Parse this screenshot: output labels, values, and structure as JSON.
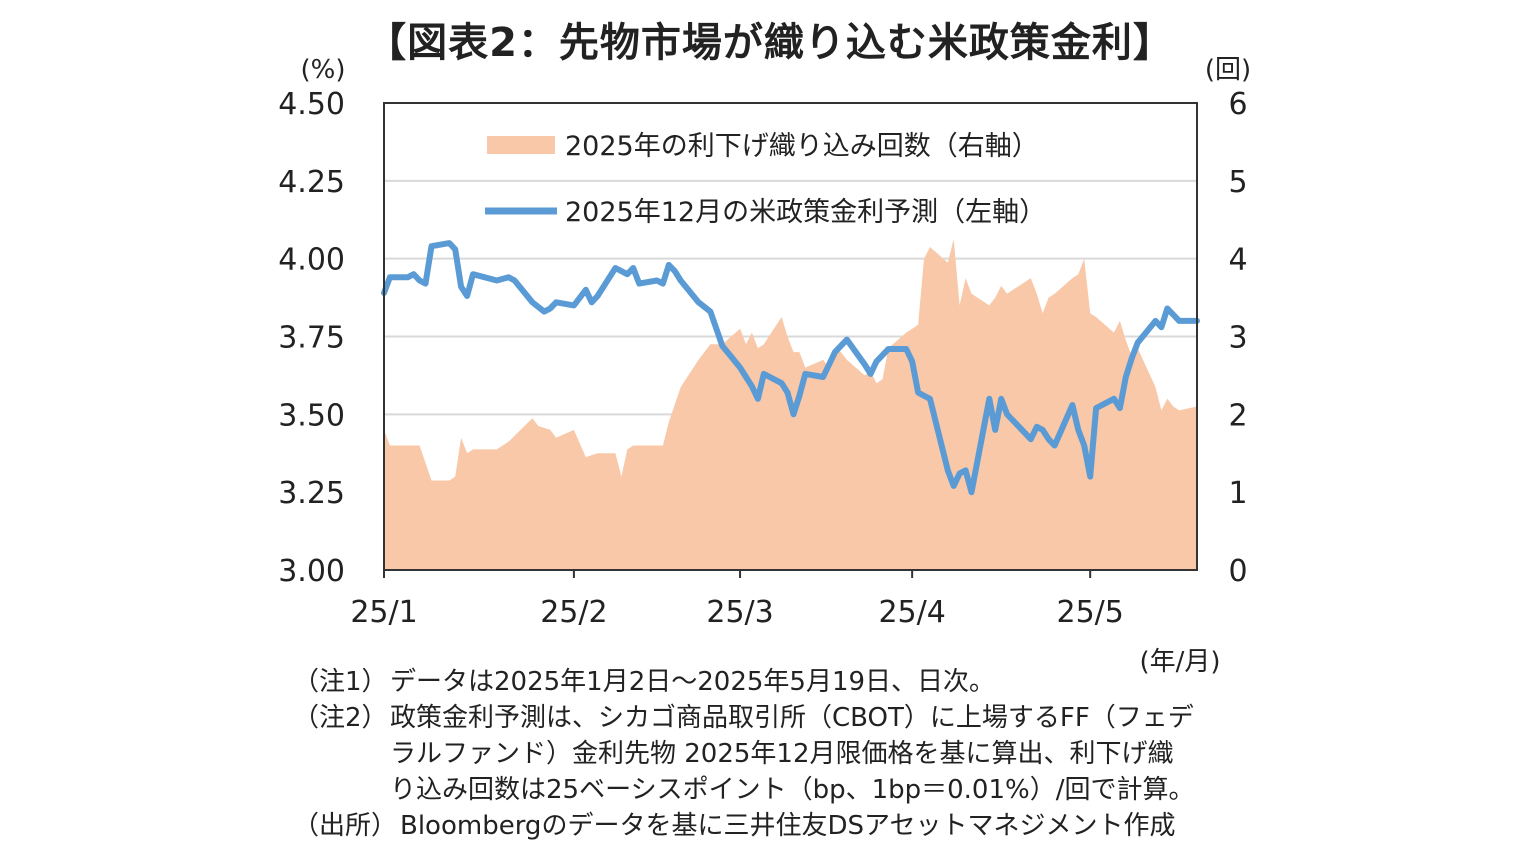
{
  "title": "【図表2：先物市場が織り込む米政策金利】",
  "chart_data": {
    "type": "area+line",
    "left_axis": {
      "unit_label": "(%)",
      "ylim": [
        3.0,
        4.5
      ],
      "ticks": [
        "3.00",
        "3.25",
        "3.50",
        "3.75",
        "4.00",
        "4.25",
        "4.50"
      ]
    },
    "right_axis": {
      "unit_label": "(回)",
      "ylim": [
        0,
        6
      ],
      "ticks": [
        "0",
        "1",
        "2",
        "3",
        "4",
        "5",
        "6"
      ]
    },
    "x_axis": {
      "unit_label": "(年/月)",
      "ticks": [
        {
          "label": "25/1",
          "date": "2025-01-02"
        },
        {
          "label": "25/2",
          "date": "2025-02-03"
        },
        {
          "label": "25/3",
          "date": "2025-03-03"
        },
        {
          "label": "25/4",
          "date": "2025-04-01"
        },
        {
          "label": "25/5",
          "date": "2025-05-01"
        }
      ],
      "range": [
        "2025-01-02",
        "2025-05-19"
      ]
    },
    "grid": "horizontal",
    "legend_position": "top-center",
    "series": [
      {
        "name": "2025年の利下げ織り込み回数（右軸）",
        "type": "area",
        "axis": "right",
        "color": "#f8c8a8",
        "points": [
          [
            "2025-01-02",
            1.8
          ],
          [
            "2025-01-03",
            1.6
          ],
          [
            "2025-01-06",
            1.6
          ],
          [
            "2025-01-08",
            1.6
          ],
          [
            "2025-01-10",
            1.15
          ],
          [
            "2025-01-13",
            1.15
          ],
          [
            "2025-01-14",
            1.2
          ],
          [
            "2025-01-15",
            1.7
          ],
          [
            "2025-01-16",
            1.5
          ],
          [
            "2025-01-17",
            1.55
          ],
          [
            "2025-01-21",
            1.55
          ],
          [
            "2025-01-23",
            1.65
          ],
          [
            "2025-01-27",
            1.95
          ],
          [
            "2025-01-28",
            1.85
          ],
          [
            "2025-01-30",
            1.8
          ],
          [
            "2025-01-31",
            1.7
          ],
          [
            "2025-02-03",
            1.8
          ],
          [
            "2025-02-05",
            1.45
          ],
          [
            "2025-02-07",
            1.5
          ],
          [
            "2025-02-10",
            1.5
          ],
          [
            "2025-02-11",
            1.2
          ],
          [
            "2025-02-12",
            1.55
          ],
          [
            "2025-02-13",
            1.6
          ],
          [
            "2025-02-14",
            1.6
          ],
          [
            "2025-02-18",
            1.6
          ],
          [
            "2025-02-19",
            1.9
          ],
          [
            "2025-02-21",
            2.35
          ],
          [
            "2025-02-24",
            2.7
          ],
          [
            "2025-02-26",
            2.9
          ],
          [
            "2025-02-28",
            2.9
          ],
          [
            "2025-03-03",
            3.1
          ],
          [
            "2025-03-04",
            2.9
          ],
          [
            "2025-03-05",
            3.05
          ],
          [
            "2025-03-06",
            2.85
          ],
          [
            "2025-03-07",
            2.9
          ],
          [
            "2025-03-10",
            3.25
          ],
          [
            "2025-03-11",
            3.0
          ],
          [
            "2025-03-12",
            2.8
          ],
          [
            "2025-03-13",
            2.8
          ],
          [
            "2025-03-14",
            2.6
          ],
          [
            "2025-03-17",
            2.7
          ],
          [
            "2025-03-18",
            2.6
          ],
          [
            "2025-03-19",
            2.85
          ],
          [
            "2025-03-20",
            2.8
          ],
          [
            "2025-03-21",
            2.7
          ],
          [
            "2025-03-24",
            2.5
          ],
          [
            "2025-03-25",
            2.55
          ],
          [
            "2025-03-26",
            2.4
          ],
          [
            "2025-03-27",
            2.45
          ],
          [
            "2025-03-28",
            2.85
          ],
          [
            "2025-03-31",
            3.05
          ],
          [
            "2025-04-01",
            3.1
          ],
          [
            "2025-04-02",
            3.15
          ],
          [
            "2025-04-03",
            4.0
          ],
          [
            "2025-04-04",
            4.15
          ],
          [
            "2025-04-07",
            3.95
          ],
          [
            "2025-04-08",
            4.25
          ],
          [
            "2025-04-09",
            3.4
          ],
          [
            "2025-04-10",
            3.75
          ],
          [
            "2025-04-11",
            3.55
          ],
          [
            "2025-04-14",
            3.4
          ],
          [
            "2025-04-15",
            3.5
          ],
          [
            "2025-04-16",
            3.65
          ],
          [
            "2025-04-17",
            3.55
          ],
          [
            "2025-04-21",
            3.75
          ],
          [
            "2025-04-22",
            3.55
          ],
          [
            "2025-04-23",
            3.3
          ],
          [
            "2025-04-24",
            3.5
          ],
          [
            "2025-04-25",
            3.55
          ],
          [
            "2025-04-28",
            3.75
          ],
          [
            "2025-04-29",
            3.8
          ],
          [
            "2025-04-30",
            4.0
          ],
          [
            "2025-05-01",
            3.3
          ],
          [
            "2025-05-02",
            3.25
          ],
          [
            "2025-05-05",
            3.05
          ],
          [
            "2025-05-06",
            3.2
          ],
          [
            "2025-05-07",
            2.95
          ],
          [
            "2025-05-08",
            2.75
          ],
          [
            "2025-05-09",
            2.85
          ],
          [
            "2025-05-12",
            2.35
          ],
          [
            "2025-05-13",
            2.05
          ],
          [
            "2025-05-14",
            2.2
          ],
          [
            "2025-05-15",
            2.1
          ],
          [
            "2025-05-16",
            2.05
          ],
          [
            "2025-05-19",
            2.1
          ]
        ]
      },
      {
        "name": "2025年12月の米政策金利予測（左軸）",
        "type": "line",
        "axis": "left",
        "color": "#5b9bd5",
        "points": [
          [
            "2025-01-02",
            3.89
          ],
          [
            "2025-01-03",
            3.94
          ],
          [
            "2025-01-06",
            3.94
          ],
          [
            "2025-01-07",
            3.95
          ],
          [
            "2025-01-08",
            3.93
          ],
          [
            "2025-01-09",
            3.92
          ],
          [
            "2025-01-10",
            4.04
          ],
          [
            "2025-01-13",
            4.05
          ],
          [
            "2025-01-14",
            4.03
          ],
          [
            "2025-01-15",
            3.91
          ],
          [
            "2025-01-16",
            3.88
          ],
          [
            "2025-01-17",
            3.95
          ],
          [
            "2025-01-21",
            3.93
          ],
          [
            "2025-01-23",
            3.94
          ],
          [
            "2025-01-24",
            3.93
          ],
          [
            "2025-01-27",
            3.86
          ],
          [
            "2025-01-29",
            3.83
          ],
          [
            "2025-01-30",
            3.84
          ],
          [
            "2025-01-31",
            3.86
          ],
          [
            "2025-02-03",
            3.85
          ],
          [
            "2025-02-05",
            3.9
          ],
          [
            "2025-02-06",
            3.86
          ],
          [
            "2025-02-07",
            3.88
          ],
          [
            "2025-02-10",
            3.97
          ],
          [
            "2025-02-12",
            3.95
          ],
          [
            "2025-02-13",
            3.97
          ],
          [
            "2025-02-14",
            3.92
          ],
          [
            "2025-02-17",
            3.93
          ],
          [
            "2025-02-18",
            3.92
          ],
          [
            "2025-02-19",
            3.98
          ],
          [
            "2025-02-20",
            3.96
          ],
          [
            "2025-02-21",
            3.93
          ],
          [
            "2025-02-24",
            3.86
          ],
          [
            "2025-02-26",
            3.83
          ],
          [
            "2025-02-28",
            3.72
          ],
          [
            "2025-03-03",
            3.65
          ],
          [
            "2025-03-04",
            3.62
          ],
          [
            "2025-03-05",
            3.59
          ],
          [
            "2025-03-06",
            3.55
          ],
          [
            "2025-03-07",
            3.63
          ],
          [
            "2025-03-10",
            3.6
          ],
          [
            "2025-03-11",
            3.57
          ],
          [
            "2025-03-12",
            3.5
          ],
          [
            "2025-03-13",
            3.56
          ],
          [
            "2025-03-14",
            3.63
          ],
          [
            "2025-03-17",
            3.62
          ],
          [
            "2025-03-18",
            3.66
          ],
          [
            "2025-03-19",
            3.7
          ],
          [
            "2025-03-20",
            3.72
          ],
          [
            "2025-03-21",
            3.74
          ],
          [
            "2025-03-24",
            3.66
          ],
          [
            "2025-03-25",
            3.63
          ],
          [
            "2025-03-26",
            3.67
          ],
          [
            "2025-03-27",
            3.69
          ],
          [
            "2025-03-28",
            3.71
          ],
          [
            "2025-03-31",
            3.71
          ],
          [
            "2025-04-01",
            3.67
          ],
          [
            "2025-04-02",
            3.57
          ],
          [
            "2025-04-03",
            3.56
          ],
          [
            "2025-04-04",
            3.55
          ],
          [
            "2025-04-07",
            3.32
          ],
          [
            "2025-04-08",
            3.27
          ],
          [
            "2025-04-09",
            3.31
          ],
          [
            "2025-04-10",
            3.32
          ],
          [
            "2025-04-11",
            3.25
          ],
          [
            "2025-04-14",
            3.55
          ],
          [
            "2025-04-15",
            3.45
          ],
          [
            "2025-04-16",
            3.55
          ],
          [
            "2025-04-17",
            3.5
          ],
          [
            "2025-04-21",
            3.42
          ],
          [
            "2025-04-22",
            3.46
          ],
          [
            "2025-04-23",
            3.45
          ],
          [
            "2025-04-24",
            3.42
          ],
          [
            "2025-04-25",
            3.4
          ],
          [
            "2025-04-28",
            3.53
          ],
          [
            "2025-04-29",
            3.45
          ],
          [
            "2025-04-30",
            3.4
          ],
          [
            "2025-05-01",
            3.3
          ],
          [
            "2025-05-02",
            3.52
          ],
          [
            "2025-05-05",
            3.55
          ],
          [
            "2025-05-06",
            3.52
          ],
          [
            "2025-05-07",
            3.62
          ],
          [
            "2025-05-08",
            3.68
          ],
          [
            "2025-05-09",
            3.73
          ],
          [
            "2025-05-12",
            3.8
          ],
          [
            "2025-05-13",
            3.78
          ],
          [
            "2025-05-14",
            3.84
          ],
          [
            "2025-05-15",
            3.82
          ],
          [
            "2025-05-16",
            3.8
          ],
          [
            "2025-05-19",
            3.8
          ]
        ]
      }
    ]
  },
  "notes": [
    {
      "tag": "（注1）",
      "lines": [
        "データは2025年1月2日～2025年5月19日、日次。"
      ]
    },
    {
      "tag": "（注2）",
      "lines": [
        "政策金利予測は、シカゴ商品取引所（CBOT）に上場するFF（フェデ",
        "ラルファンド）金利先物 2025年12月限価格を基に算出、利下げ織",
        "り込み回数は25ベーシスポイント（bp、1bp＝0.01%）/回で計算。"
      ]
    },
    {
      "tag": "（出所）",
      "lines": [
        "Bloombergのデータを基に三井住友DSアセットマネジメント作成"
      ]
    }
  ]
}
